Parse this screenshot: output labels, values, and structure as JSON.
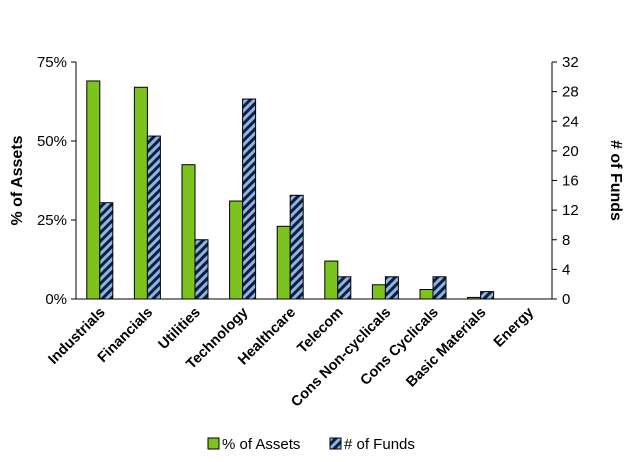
{
  "chart_data": {
    "type": "bar",
    "categories": [
      "Industrials",
      "Financials",
      "Utilities",
      "Technology",
      "Healthcare",
      "Telecom",
      "Cons Non-cyclicals",
      "Cons Cyclicals",
      "Basic Materials",
      "Energy"
    ],
    "series": [
      {
        "name": "% of Assets",
        "axis": "left",
        "color": "#7dc31e",
        "values": [
          69,
          67,
          42.5,
          31,
          23,
          12,
          4.5,
          3,
          0.5,
          0
        ]
      },
      {
        "name": "# of Funds",
        "axis": "right",
        "color": "#8db4e2",
        "pattern": "hatched",
        "values": [
          13,
          22,
          8,
          27,
          14,
          3,
          3,
          3,
          1,
          0
        ]
      }
    ],
    "y_left": {
      "label": "% of Assets",
      "ylim": [
        0,
        75
      ],
      "ticks": [
        0,
        25,
        50,
        75
      ],
      "tick_labels": [
        "0%",
        "25%",
        "50%",
        "75%"
      ]
    },
    "y_right": {
      "label": "# of Funds",
      "ylim": [
        0,
        32
      ],
      "ticks": [
        0,
        4,
        8,
        12,
        16,
        20,
        24,
        28,
        32
      ],
      "tick_labels": [
        "0",
        "4",
        "8",
        "12",
        "16",
        "20",
        "24",
        "28",
        "32"
      ]
    },
    "title": "",
    "xlabel": "",
    "grid": false,
    "legend_position": "bottom"
  }
}
